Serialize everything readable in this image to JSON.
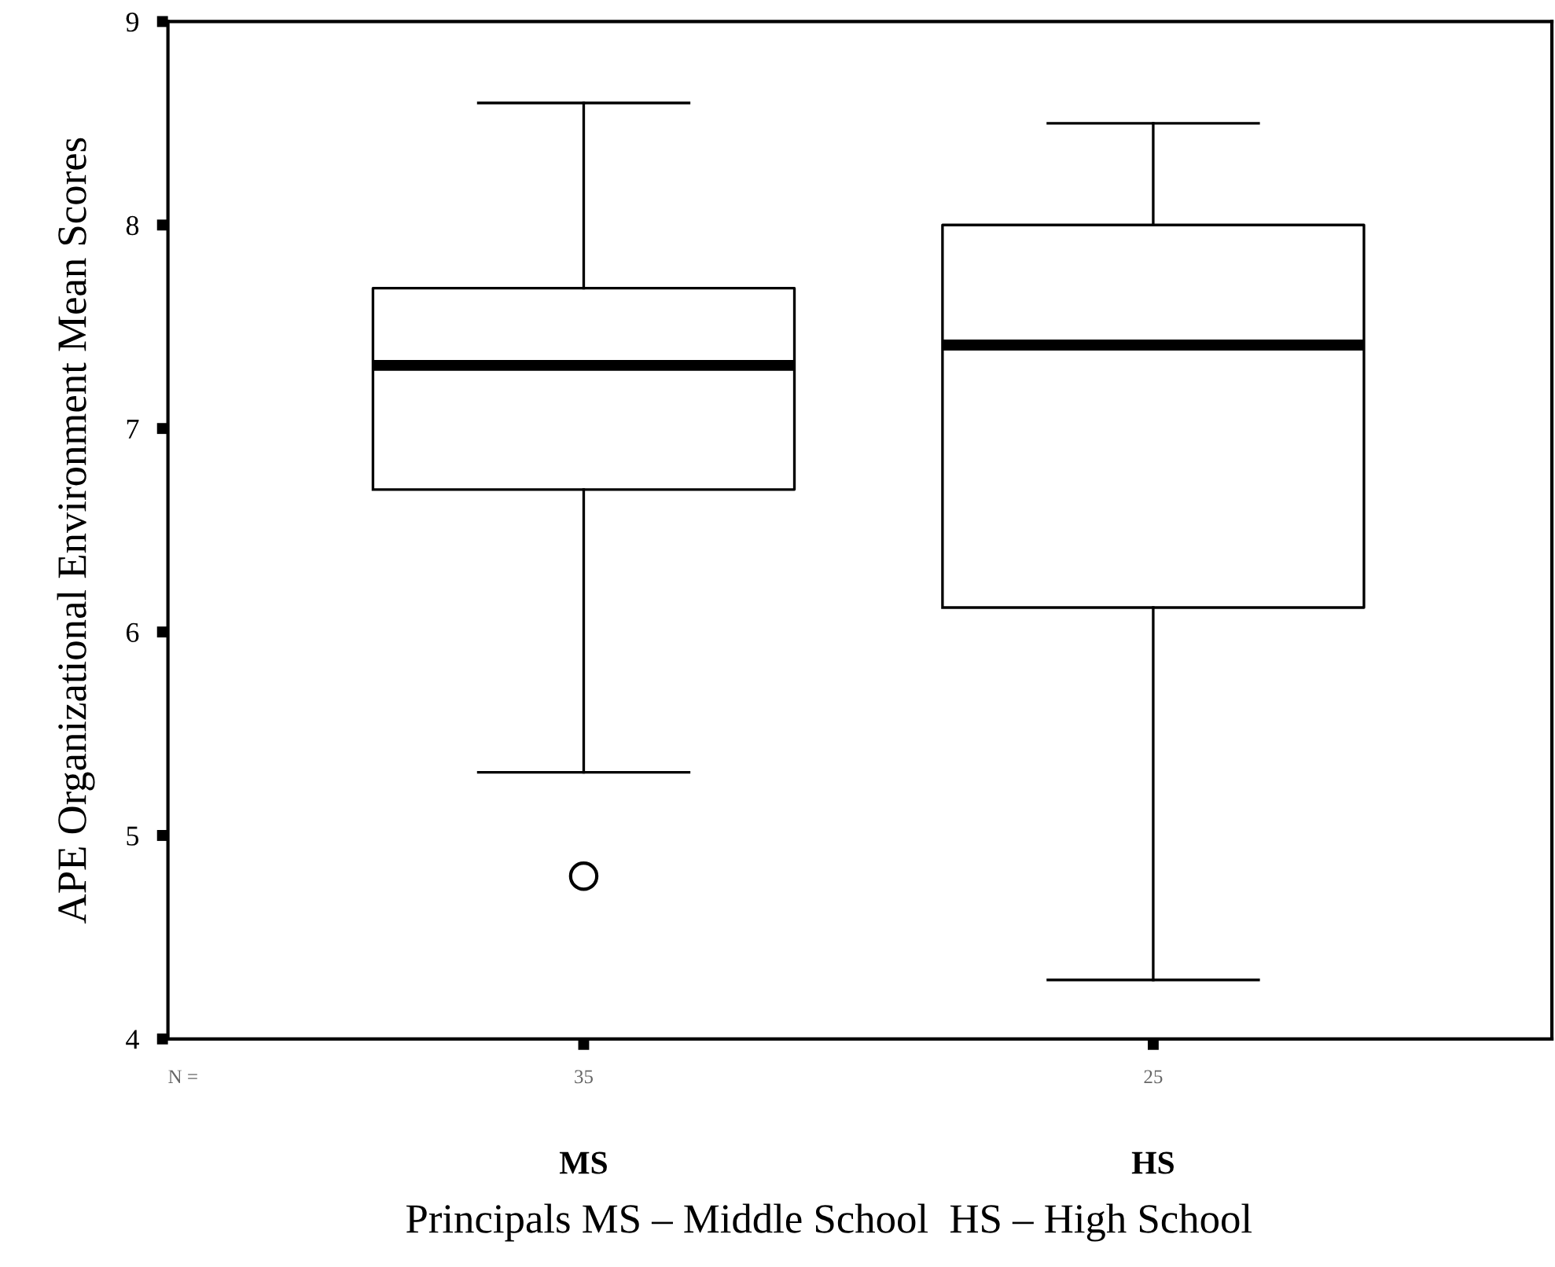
{
  "chart_data": {
    "type": "box",
    "ylabel": "APE Organizational Environment Mean Scores",
    "xlabel": "Principals MS – Middle School  HS – High School",
    "categories": [
      "MS",
      "HS"
    ],
    "boxes": [
      {
        "low": 5.31,
        "q1": 6.7,
        "median": 7.31,
        "q3": 7.69,
        "high": 8.6,
        "outliers": [
          4.8
        ]
      },
      {
        "low": 4.29,
        "q1": 6.12,
        "median": 7.41,
        "q3": 8.0,
        "high": 8.5
      }
    ],
    "ylim": [
      4,
      9
    ],
    "yticks": [
      4,
      5,
      6,
      7,
      8,
      9
    ],
    "grid": false,
    "annotations": [
      "N =",
      "35",
      "25"
    ]
  }
}
